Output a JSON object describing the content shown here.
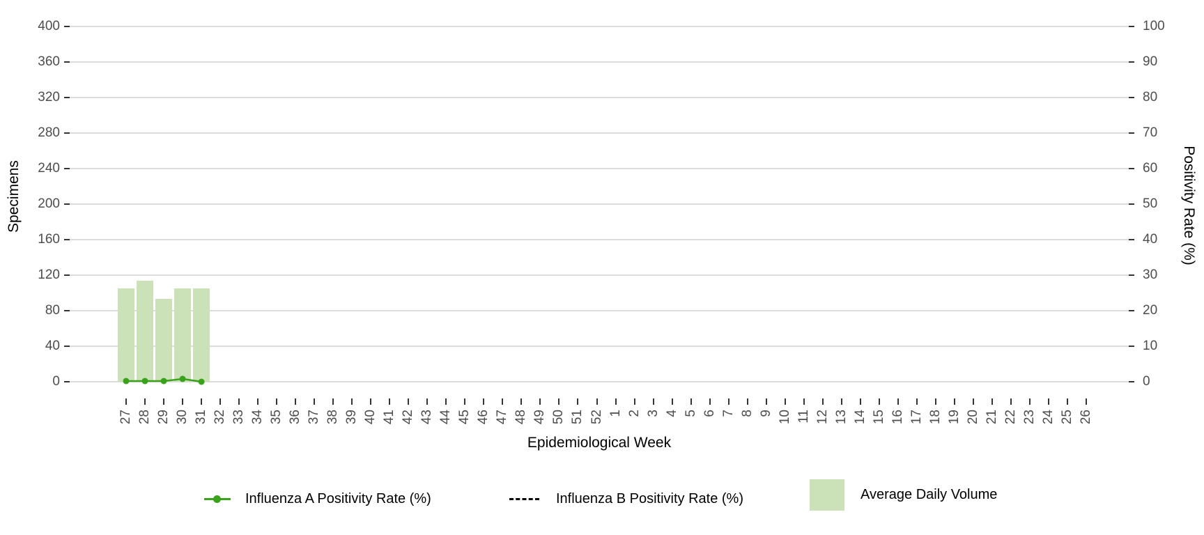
{
  "chart_data": {
    "type": "combo",
    "categories": [
      "27",
      "28",
      "29",
      "30",
      "31",
      "32",
      "33",
      "34",
      "35",
      "36",
      "37",
      "38",
      "39",
      "40",
      "41",
      "42",
      "43",
      "44",
      "45",
      "46",
      "47",
      "48",
      "49",
      "50",
      "51",
      "52",
      "1",
      "2",
      "3",
      "4",
      "5",
      "6",
      "7",
      "8",
      "9",
      "10",
      "11",
      "12",
      "13",
      "14",
      "15",
      "16",
      "17",
      "18",
      "19",
      "20",
      "21",
      "22",
      "23",
      "24",
      "25",
      "26"
    ],
    "xlabel": "Epidemiological Week",
    "left_axis": {
      "label": "Specimens",
      "min": 0,
      "max": 400,
      "ticks": [
        0,
        40,
        80,
        120,
        160,
        200,
        240,
        280,
        320,
        360,
        400
      ]
    },
    "right_axis": {
      "label": "Positivity Rate (%)",
      "min": 0,
      "max": 100,
      "ticks": [
        0,
        10,
        20,
        30,
        40,
        50,
        60,
        70,
        80,
        90,
        100
      ]
    },
    "grid": true,
    "legend_position": "bottom",
    "series": [
      {
        "name": "Influenza A Positivity Rate (%)",
        "type": "line",
        "axis": "right",
        "color": "#3aa21a",
        "marker": "circle",
        "values": [
          0.2,
          0.2,
          0.2,
          0.8,
          0,
          null,
          null,
          null,
          null,
          null,
          null,
          null,
          null,
          null,
          null,
          null,
          null,
          null,
          null,
          null,
          null,
          null,
          null,
          null,
          null,
          null,
          null,
          null,
          null,
          null,
          null,
          null,
          null,
          null,
          null,
          null,
          null,
          null,
          null,
          null,
          null,
          null,
          null,
          null,
          null,
          null,
          null,
          null,
          null,
          null,
          null,
          null
        ]
      },
      {
        "name": "Influenza B Positivity Rate (%)",
        "type": "line",
        "axis": "right",
        "color": "#000000",
        "dash": true,
        "values": [
          null,
          null,
          null,
          null,
          null,
          null,
          null,
          null,
          null,
          null,
          null,
          null,
          null,
          null,
          null,
          null,
          null,
          null,
          null,
          null,
          null,
          null,
          null,
          null,
          null,
          null,
          null,
          null,
          null,
          null,
          null,
          null,
          null,
          null,
          null,
          null,
          null,
          null,
          null,
          null,
          null,
          null,
          null,
          null,
          null,
          null,
          null,
          null,
          null,
          null,
          null,
          null
        ]
      },
      {
        "name": "Average Daily Volume",
        "type": "bar",
        "axis": "left",
        "color": "#cbe2b8",
        "values": [
          105,
          114,
          93,
          105,
          105,
          null,
          null,
          null,
          null,
          null,
          null,
          null,
          null,
          null,
          null,
          null,
          null,
          null,
          null,
          null,
          null,
          null,
          null,
          null,
          null,
          null,
          null,
          null,
          null,
          null,
          null,
          null,
          null,
          null,
          null,
          null,
          null,
          null,
          null,
          null,
          null,
          null,
          null,
          null,
          null,
          null,
          null,
          null,
          null,
          null,
          null,
          null
        ]
      }
    ]
  },
  "colors": {
    "grid": "#dcdcdc",
    "tick": "#333333",
    "tick_label": "#4d4d4d",
    "line_green": "#3aa21a",
    "bar_green": "#cbe2b8",
    "dash_black": "#000000"
  }
}
